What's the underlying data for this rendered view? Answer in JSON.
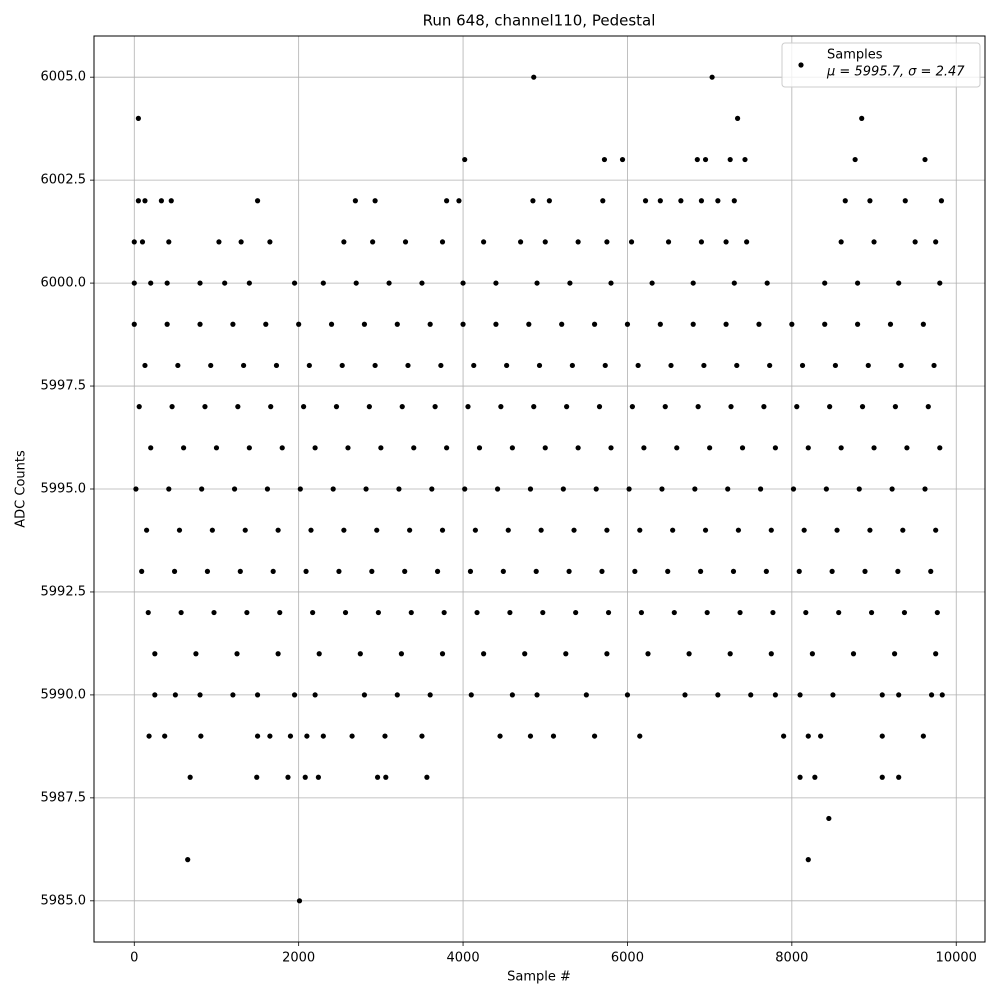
{
  "chart_data": {
    "type": "scatter",
    "title": "Run 648, channel110, Pedestal",
    "x_label": "Sample #",
    "y_label": "ADC Counts",
    "xlim": [
      -490,
      10350
    ],
    "xticks": [
      0,
      2000,
      4000,
      6000,
      8000,
      10000
    ],
    "ylim": [
      5984,
      6006
    ],
    "yticks": [
      {
        "value": 5985,
        "label": "5985.0"
      },
      {
        "value": 5987.5,
        "label": "5987.5"
      },
      {
        "value": 5990,
        "label": "5990.0"
      },
      {
        "value": 5992.5,
        "label": "5992.5"
      },
      {
        "value": 5995,
        "label": "5995.0"
      },
      {
        "value": 5997.5,
        "label": "5997.5"
      },
      {
        "value": 6000,
        "label": "6000.0"
      },
      {
        "value": 6002.5,
        "label": "6002.5"
      },
      {
        "value": 6005,
        "label": "6005.0"
      }
    ],
    "grid": true,
    "legend": "upper right",
    "series": [
      {
        "name": "Samples",
        "color": "#000000",
        "legend_note": "μ = 5995.7, σ = 2.47",
        "x": [
          4860,
          7030,
          50,
          7340,
          8850,
          4020,
          5720,
          5940,
          6850,
          6950,
          7250,
          7430,
          8770,
          9620,
          50,
          130,
          330,
          450,
          1500,
          2690,
          2930,
          3800,
          3950,
          4850,
          5050,
          5700,
          6220,
          6400,
          6650,
          6900,
          7100,
          7300,
          8650,
          8950,
          9380,
          9820,
          0,
          100,
          420,
          1030,
          1300,
          1650,
          2550,
          2900,
          3300,
          3750,
          4250,
          4700,
          5000,
          5400,
          5750,
          6050,
          6500,
          6900,
          7200,
          7450,
          8600,
          9000,
          9500,
          9750,
          0,
          200,
          400,
          800,
          1100,
          1400,
          1950,
          2300,
          2700,
          3100,
          3500,
          4000,
          4400,
          4900,
          5300,
          5800,
          6300,
          6800,
          7300,
          7700,
          8400,
          8800,
          9300,
          9800,
          0,
          400,
          800,
          1200,
          1600,
          2000,
          2400,
          2800,
          3200,
          3600,
          4000,
          4400,
          4800,
          5200,
          5600,
          6000,
          6400,
          6800,
          7200,
          7600,
          8000,
          8400,
          8800,
          9200,
          9600,
          130,
          530,
          930,
          1330,
          1730,
          2130,
          2530,
          2930,
          3330,
          3730,
          4130,
          4530,
          4930,
          5330,
          5730,
          6130,
          6530,
          6930,
          7330,
          7730,
          8130,
          8530,
          8930,
          9330,
          9730,
          60,
          460,
          860,
          1260,
          1660,
          2060,
          2460,
          2860,
          3260,
          3660,
          4060,
          4460,
          4860,
          5260,
          5660,
          6060,
          6460,
          6860,
          7260,
          7660,
          8060,
          8460,
          8860,
          9260,
          9660,
          200,
          600,
          1000,
          1400,
          1800,
          2200,
          2600,
          3000,
          3400,
          3800,
          4200,
          4600,
          5000,
          5400,
          5800,
          6200,
          6600,
          7000,
          7400,
          7800,
          8200,
          8600,
          9000,
          9400,
          9800,
          20,
          420,
          820,
          1220,
          1620,
          2020,
          2420,
          2820,
          3220,
          3620,
          4020,
          4420,
          4820,
          5220,
          5620,
          6020,
          6420,
          6820,
          7220,
          7620,
          8020,
          8420,
          8820,
          9220,
          9620,
          150,
          550,
          950,
          1350,
          1750,
          2150,
          2550,
          2950,
          3350,
          3750,
          4150,
          4550,
          4950,
          5350,
          5750,
          6150,
          6550,
          6950,
          7350,
          7750,
          8150,
          8550,
          8950,
          9350,
          9750,
          90,
          490,
          890,
          1290,
          1690,
          2090,
          2490,
          2890,
          3290,
          3690,
          4090,
          4490,
          4890,
          5290,
          5690,
          6090,
          6490,
          6890,
          7290,
          7690,
          8090,
          8490,
          8890,
          9290,
          9690,
          170,
          570,
          970,
          1370,
          1770,
          2170,
          2570,
          2970,
          3370,
          3770,
          4170,
          4570,
          4970,
          5370,
          5770,
          6170,
          6570,
          6970,
          7370,
          7770,
          8170,
          8570,
          8970,
          9370,
          9770,
          250,
          750,
          1250,
          1750,
          2250,
          2750,
          3250,
          3750,
          4250,
          4750,
          5250,
          5750,
          6250,
          6750,
          7250,
          7750,
          8250,
          8750,
          9250,
          9750,
          250,
          500,
          800,
          1200,
          1500,
          1950,
          2200,
          2800,
          3200,
          3600,
          4100,
          4600,
          4900,
          5500,
          6000,
          6700,
          7100,
          7500,
          7800,
          8100,
          8500,
          9100,
          9300,
          9700,
          9830,
          180,
          370,
          810,
          1500,
          1650,
          1900,
          2100,
          2300,
          2650,
          3050,
          3500,
          4450,
          4820,
          5100,
          5600,
          6150,
          7900,
          8200,
          8350,
          9100,
          9600,
          680,
          1490,
          1870,
          2080,
          2240,
          2960,
          3060,
          3560,
          8100,
          8280,
          9100,
          9300,
          8450,
          650,
          8200,
          2010
        ],
        "values": [
          6005,
          6005,
          6004,
          6004,
          6004,
          6003,
          6003,
          6003,
          6003,
          6003,
          6003,
          6003,
          6003,
          6003,
          6002,
          6002,
          6002,
          6002,
          6002,
          6002,
          6002,
          6002,
          6002,
          6002,
          6002,
          6002,
          6002,
          6002,
          6002,
          6002,
          6002,
          6002,
          6002,
          6002,
          6002,
          6002,
          6001,
          6001,
          6001,
          6001,
          6001,
          6001,
          6001,
          6001,
          6001,
          6001,
          6001,
          6001,
          6001,
          6001,
          6001,
          6001,
          6001,
          6001,
          6001,
          6001,
          6001,
          6001,
          6001,
          6001,
          6000,
          6000,
          6000,
          6000,
          6000,
          6000,
          6000,
          6000,
          6000,
          6000,
          6000,
          6000,
          6000,
          6000,
          6000,
          6000,
          6000,
          6000,
          6000,
          6000,
          6000,
          6000,
          6000,
          6000,
          5999,
          5999,
          5999,
          5999,
          5999,
          5999,
          5999,
          5999,
          5999,
          5999,
          5999,
          5999,
          5999,
          5999,
          5999,
          5999,
          5999,
          5999,
          5999,
          5999,
          5999,
          5999,
          5999,
          5999,
          5999,
          5998,
          5998,
          5998,
          5998,
          5998,
          5998,
          5998,
          5998,
          5998,
          5998,
          5998,
          5998,
          5998,
          5998,
          5998,
          5998,
          5998,
          5998,
          5998,
          5998,
          5998,
          5998,
          5998,
          5998,
          5998,
          5997,
          5997,
          5997,
          5997,
          5997,
          5997,
          5997,
          5997,
          5997,
          5997,
          5997,
          5997,
          5997,
          5997,
          5997,
          5997,
          5997,
          5997,
          5997,
          5997,
          5997,
          5997,
          5997,
          5997,
          5997,
          5996,
          5996,
          5996,
          5996,
          5996,
          5996,
          5996,
          5996,
          5996,
          5996,
          5996,
          5996,
          5996,
          5996,
          5996,
          5996,
          5996,
          5996,
          5996,
          5996,
          5996,
          5996,
          5996,
          5996,
          5996,
          5995,
          5995,
          5995,
          5995,
          5995,
          5995,
          5995,
          5995,
          5995,
          5995,
          5995,
          5995,
          5995,
          5995,
          5995,
          5995,
          5995,
          5995,
          5995,
          5995,
          5995,
          5995,
          5995,
          5995,
          5995,
          5994,
          5994,
          5994,
          5994,
          5994,
          5994,
          5994,
          5994,
          5994,
          5994,
          5994,
          5994,
          5994,
          5994,
          5994,
          5994,
          5994,
          5994,
          5994,
          5994,
          5994,
          5994,
          5994,
          5994,
          5994,
          5993,
          5993,
          5993,
          5993,
          5993,
          5993,
          5993,
          5993,
          5993,
          5993,
          5993,
          5993,
          5993,
          5993,
          5993,
          5993,
          5993,
          5993,
          5993,
          5993,
          5993,
          5993,
          5993,
          5993,
          5993,
          5992,
          5992,
          5992,
          5992,
          5992,
          5992,
          5992,
          5992,
          5992,
          5992,
          5992,
          5992,
          5992,
          5992,
          5992,
          5992,
          5992,
          5992,
          5992,
          5992,
          5992,
          5992,
          5992,
          5992,
          5992,
          5991,
          5991,
          5991,
          5991,
          5991,
          5991,
          5991,
          5991,
          5991,
          5991,
          5991,
          5991,
          5991,
          5991,
          5991,
          5991,
          5991,
          5991,
          5991,
          5991,
          5990,
          5990,
          5990,
          5990,
          5990,
          5990,
          5990,
          5990,
          5990,
          5990,
          5990,
          5990,
          5990,
          5990,
          5990,
          5990,
          5990,
          5990,
          5990,
          5990,
          5990,
          5990,
          5990,
          5990,
          5990,
          5989,
          5989,
          5989,
          5989,
          5989,
          5989,
          5989,
          5989,
          5989,
          5989,
          5989,
          5989,
          5989,
          5989,
          5989,
          5989,
          5989,
          5989,
          5989,
          5989,
          5989,
          5988,
          5988,
          5988,
          5988,
          5988,
          5988,
          5988,
          5988,
          5988,
          5988,
          5988,
          5988,
          5987,
          5986,
          5986,
          5985
        ]
      }
    ]
  }
}
